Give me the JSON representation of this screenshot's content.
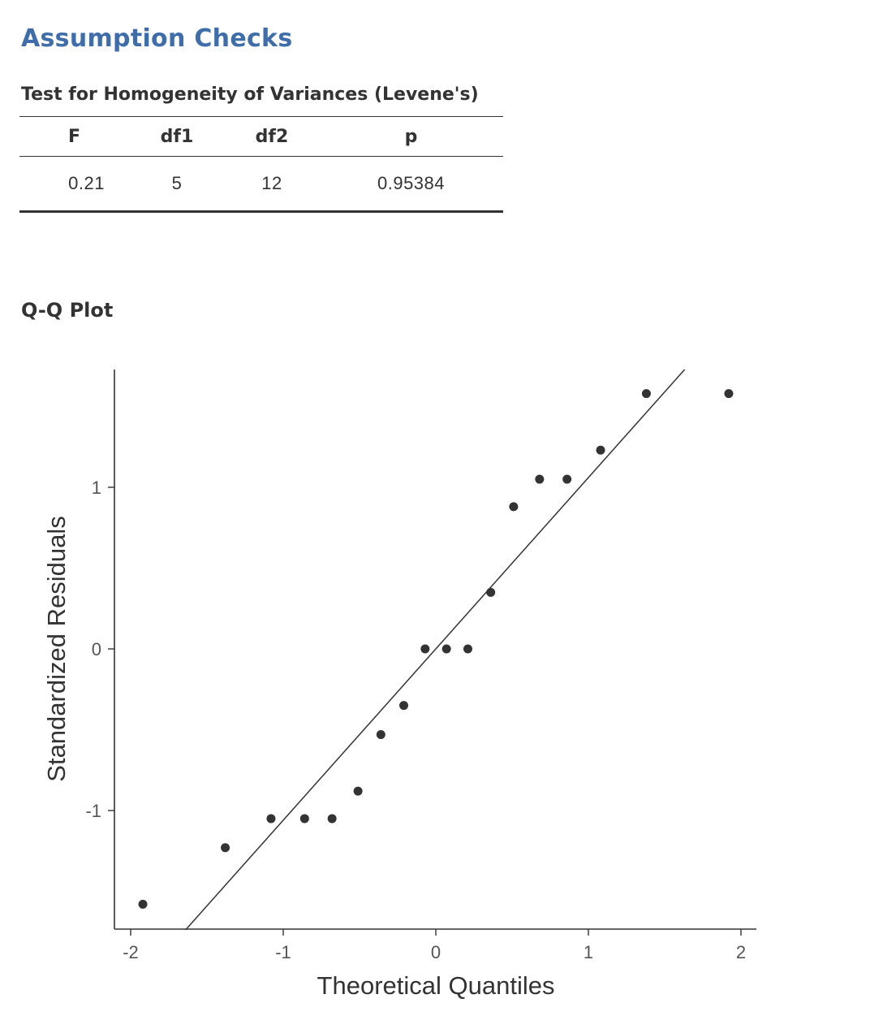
{
  "heading": "Assumption Checks",
  "levene": {
    "title": "Test for Homogeneity of Variances (Levene's)",
    "columns": [
      "F",
      "df1",
      "df2",
      "p"
    ],
    "row": [
      "0.21",
      "5",
      "12",
      "0.95384"
    ]
  },
  "plot_title": "Q-Q Plot",
  "chart_data": {
    "type": "scatter",
    "xlabel": "Theoretical Quantiles",
    "ylabel": "Standardized Residuals",
    "xlim": [
      -2.1,
      2.1
    ],
    "ylim": [
      -1.73,
      1.73
    ],
    "xticks": [
      -2,
      -1,
      0,
      1,
      2
    ],
    "yticks": [
      -1,
      0,
      1
    ],
    "x_tick_labels": [
      "-2",
      "-1",
      "0",
      "1",
      "2"
    ],
    "y_tick_labels": [
      "-1",
      "0",
      "1"
    ],
    "points": [
      {
        "x": -1.92,
        "y": -1.58
      },
      {
        "x": -1.38,
        "y": -1.23
      },
      {
        "x": -1.08,
        "y": -1.05
      },
      {
        "x": -0.86,
        "y": -1.05
      },
      {
        "x": -0.68,
        "y": -1.05
      },
      {
        "x": -0.51,
        "y": -0.88
      },
      {
        "x": -0.36,
        "y": -0.53
      },
      {
        "x": -0.21,
        "y": -0.35
      },
      {
        "x": -0.07,
        "y": 0.0
      },
      {
        "x": 0.07,
        "y": 0.0
      },
      {
        "x": 0.21,
        "y": 0.0
      },
      {
        "x": 0.36,
        "y": 0.35
      },
      {
        "x": 0.51,
        "y": 0.88
      },
      {
        "x": 0.68,
        "y": 1.05
      },
      {
        "x": 0.86,
        "y": 1.05
      },
      {
        "x": 1.08,
        "y": 1.23
      },
      {
        "x": 1.38,
        "y": 1.58
      },
      {
        "x": 1.92,
        "y": 1.58
      }
    ],
    "reference_line": {
      "slope": 1.06,
      "intercept": 0.0
    },
    "grid": false
  }
}
